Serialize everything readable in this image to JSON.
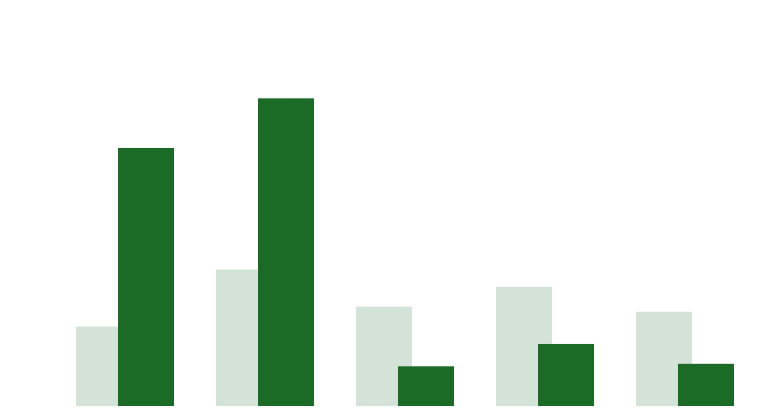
{
  "colors": {
    "background": "#ffffff",
    "series_light": "#d3e3d7",
    "series_dark": "#1b6b26"
  },
  "chart_data": {
    "type": "bar",
    "categories": [
      "",
      "",
      "",
      "",
      ""
    ],
    "series": [
      {
        "color": "#d3e3d7",
        "values": [
          32,
          55,
          40,
          48,
          38
        ]
      },
      {
        "color": "#1b6b26",
        "values": [
          104,
          124,
          16,
          25,
          17
        ]
      }
    ],
    "title": "",
    "xlabel": "",
    "ylabel": "",
    "ylim": [
      0,
      160
    ],
    "grid": false,
    "legend": "none",
    "bar_layout": "overlapping"
  }
}
